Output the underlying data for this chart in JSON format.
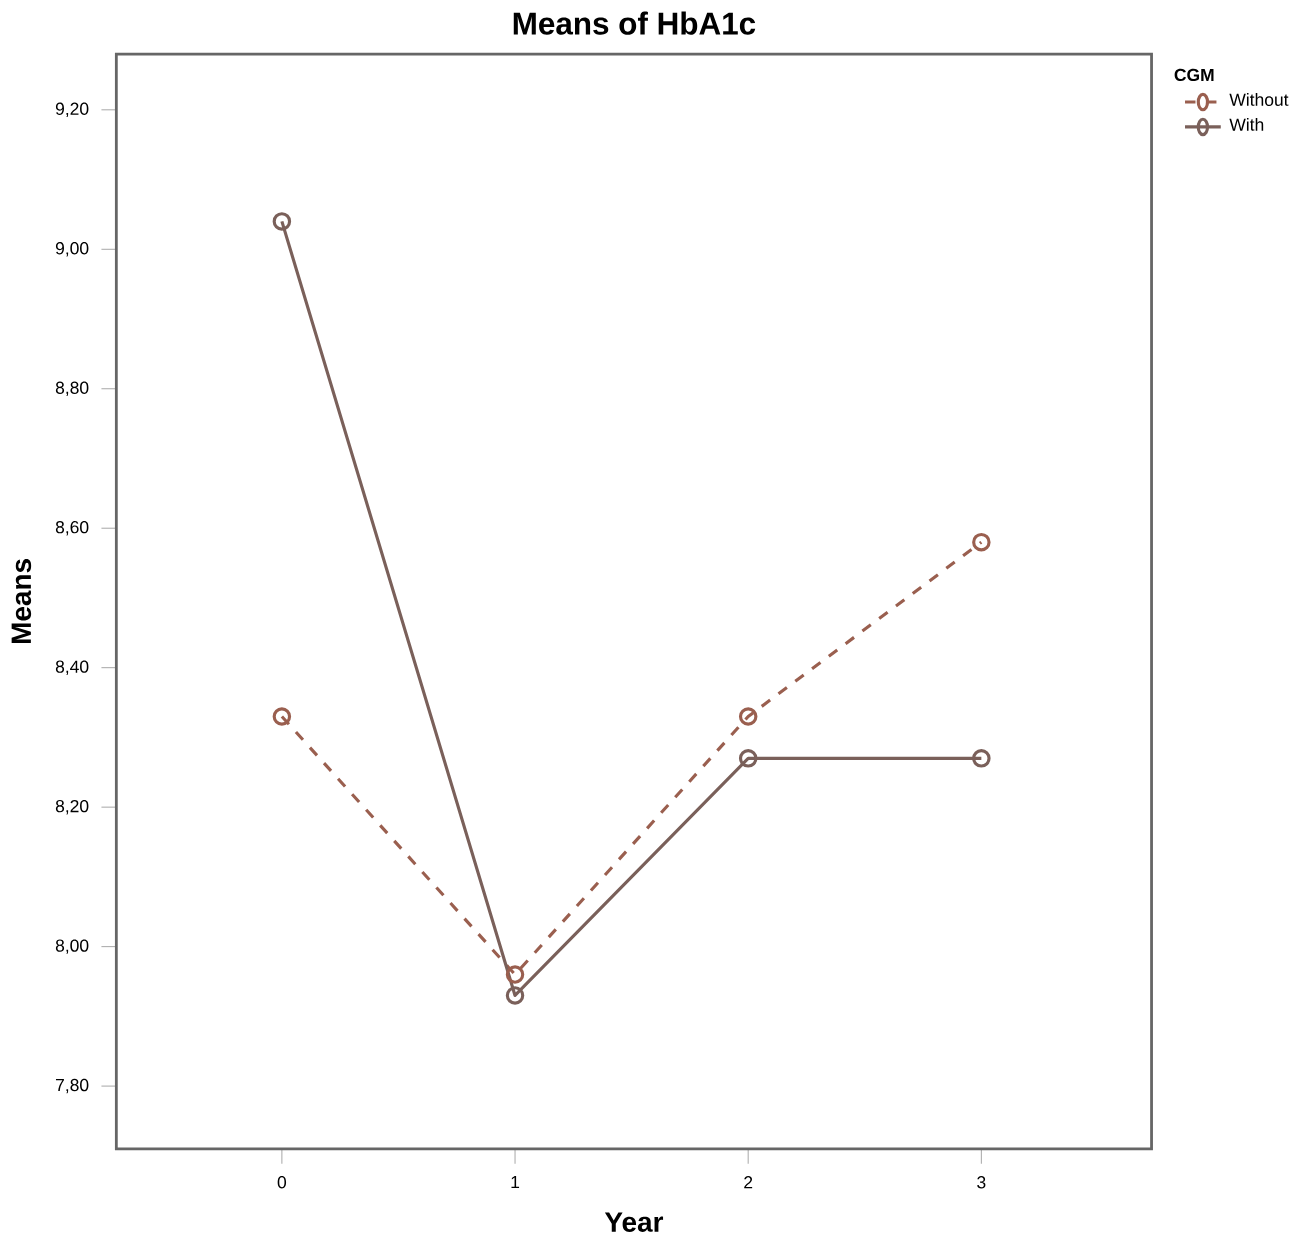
{
  "chart_data": {
    "type": "line",
    "title": "Means of HbA1c",
    "xlabel": "Year",
    "ylabel": "Means",
    "legend_title": "CGM",
    "categories": [
      "0",
      "1",
      "2",
      "3"
    ],
    "series": [
      {
        "name": "Without",
        "color": "#9a5f4f",
        "line_style": "dashed",
        "values": [
          8.33,
          7.96,
          8.33,
          8.58
        ]
      },
      {
        "name": "With",
        "color": "#7a605a",
        "line_style": "solid",
        "values": [
          9.04,
          7.93,
          8.27,
          8.27
        ]
      }
    ],
    "ylim": [
      7.71,
      9.28
    ],
    "yticks": [
      {
        "value": 7.8,
        "label": "7,80"
      },
      {
        "value": 8.0,
        "label": "8,00"
      },
      {
        "value": 8.2,
        "label": "8,20"
      },
      {
        "value": 8.4,
        "label": "8,40"
      },
      {
        "value": 8.6,
        "label": "8,60"
      },
      {
        "value": 8.8,
        "label": "8,80"
      },
      {
        "value": 9.0,
        "label": "9,00"
      },
      {
        "value": 9.2,
        "label": "9,20"
      }
    ],
    "marker": "circle",
    "legend": "top right",
    "grid": false
  }
}
